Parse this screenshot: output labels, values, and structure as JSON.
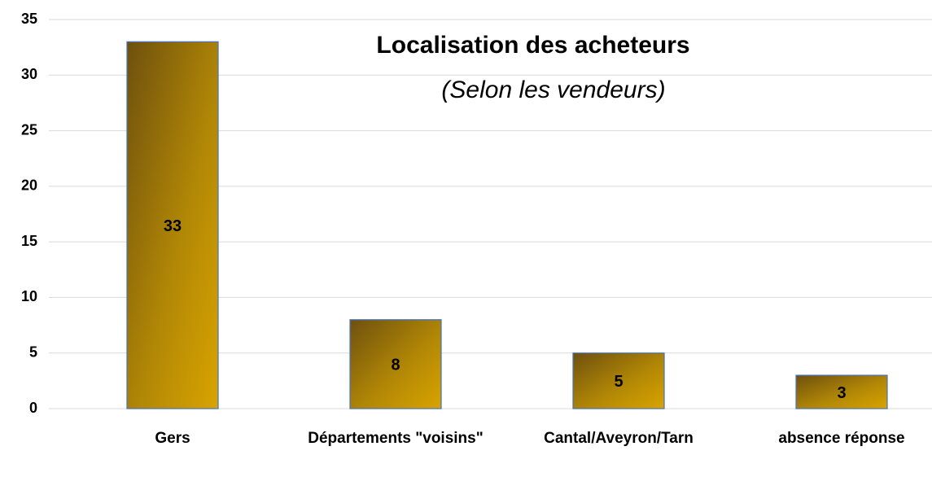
{
  "chart_data": {
    "type": "bar",
    "title": "Localisation des acheteurs",
    "subtitle": "(Selon les vendeurs)",
    "categories": [
      "Gers",
      "Départements \"voisins\"",
      "Cantal/Aveyron/Tarn",
      "absence réponse"
    ],
    "values": [
      33,
      8,
      5,
      3
    ],
    "color": "#d4a000",
    "ylim": [
      0,
      35
    ],
    "yticks": [
      0,
      5,
      10,
      15,
      20,
      25,
      30,
      35
    ],
    "grid": true
  }
}
